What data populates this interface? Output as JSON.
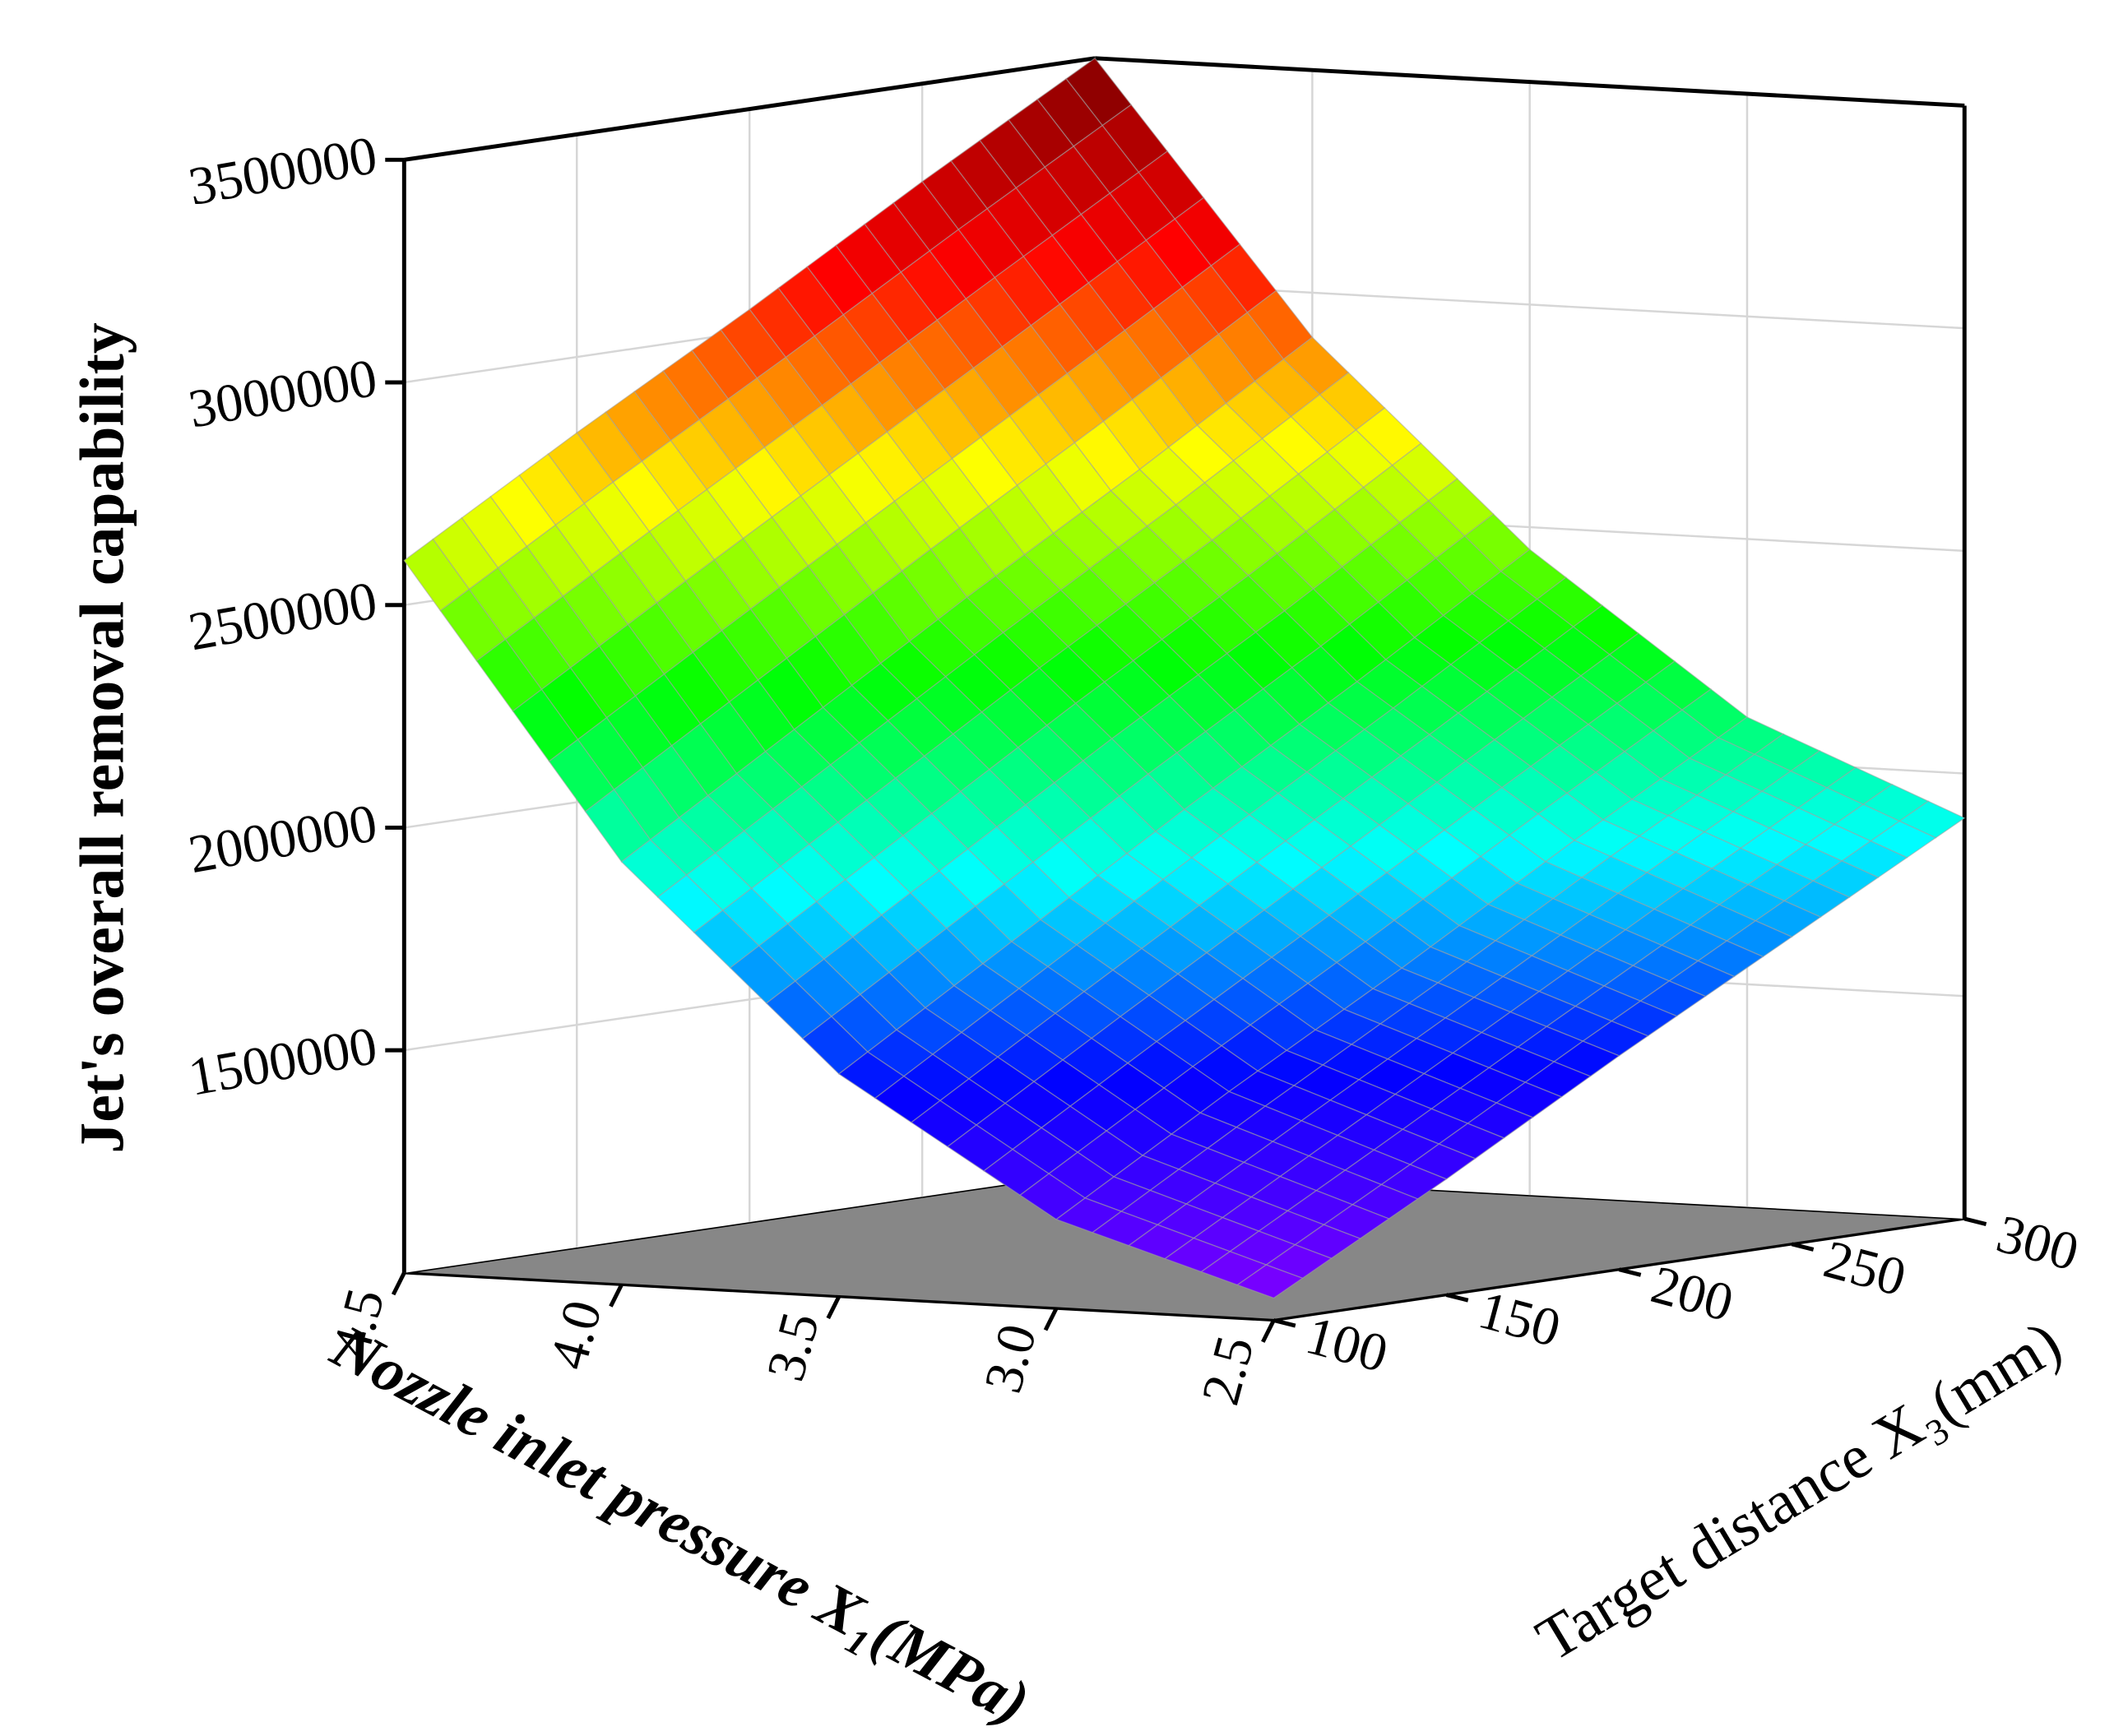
{
  "chart_data": {
    "type": "surface",
    "zlabel": "Jet's overall removal capability",
    "xlabel": "Nozzle inlet pressure X₁(MPa)",
    "ylabel": "Target distance X₃(mm)",
    "x": [
      2.5,
      3.0,
      3.5,
      4.0,
      4.5
    ],
    "y": [
      100,
      150,
      200,
      250,
      300
    ],
    "z": [
      [
        1050000,
        1260000,
        1480000,
        1690000,
        1900000
      ],
      [
        1200000,
        1430000,
        1650000,
        1880000,
        2100000
      ],
      [
        1500000,
        1740000,
        1980000,
        2210000,
        2450000
      ],
      [
        1950000,
        2190000,
        2430000,
        2660000,
        2900000
      ],
      [
        2600000,
        2830000,
        3050000,
        3280000,
        3500000
      ]
    ],
    "xlim": [
      2.5,
      4.5
    ],
    "ylim": [
      100,
      300
    ],
    "zlim": [
      1000000,
      3500000
    ],
    "xticks": [
      2.5,
      {
        "value": 3,
        "label": "3.0"
      },
      3.5,
      {
        "value": 4,
        "label": "4.0"
      },
      4.5
    ],
    "yticks": [
      100,
      150,
      200,
      250,
      300
    ],
    "zticks": [
      1500000,
      2000000,
      2500000,
      3000000,
      3500000
    ],
    "colormap": [
      "#7f00ff",
      "#0000ff",
      "#00ffff",
      "#00ff00",
      "#ffff00",
      "#ff0000",
      "#7a0000"
    ],
    "floor_color": "#878787",
    "grid": true
  }
}
